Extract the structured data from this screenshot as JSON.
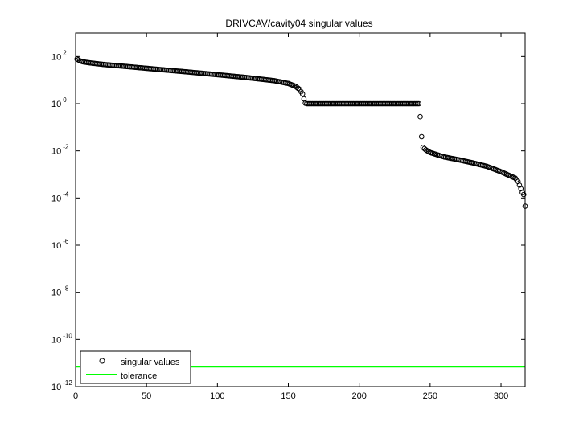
{
  "chart_data": {
    "type": "scatter",
    "title": "DRIVCAV/cavity04 singular values",
    "xlabel": "",
    "ylabel": "",
    "x_scale": "linear",
    "y_scale": "log",
    "xlim": [
      0,
      317
    ],
    "ylim": [
      1e-12,
      1000
    ],
    "x_ticks": [
      0,
      50,
      100,
      150,
      200,
      250,
      300
    ],
    "y_ticks": [
      {
        "exp": -12,
        "base": "10",
        "sup": "-12"
      },
      {
        "exp": -10,
        "base": "10",
        "sup": "-10"
      },
      {
        "exp": -8,
        "base": "10",
        "sup": "-8"
      },
      {
        "exp": -6,
        "base": "10",
        "sup": "-6"
      },
      {
        "exp": -4,
        "base": "10",
        "sup": "-4"
      },
      {
        "exp": -2,
        "base": "10",
        "sup": "-2"
      },
      {
        "exp": 0,
        "base": "10",
        "sup": "0"
      },
      {
        "exp": 2,
        "base": "10",
        "sup": "2"
      }
    ],
    "grid": false,
    "legend": {
      "position": "bottom-left",
      "entries": [
        {
          "label": "singular values",
          "marker": "circle",
          "color": "#000000"
        },
        {
          "label": "tolerance",
          "marker": "line",
          "color": "#00ff00"
        }
      ]
    },
    "series": [
      {
        "name": "singular values",
        "marker": "circle",
        "color": "#000000",
        "n": 317,
        "profile": [
          [
            1,
            78
          ],
          [
            2,
            72
          ],
          [
            3,
            66
          ],
          [
            5,
            60
          ],
          [
            10,
            54
          ],
          [
            20,
            46
          ],
          [
            40,
            36
          ],
          [
            60,
            28
          ],
          [
            80,
            22
          ],
          [
            100,
            17
          ],
          [
            120,
            13
          ],
          [
            140,
            9.5
          ],
          [
            150,
            7.2
          ],
          [
            155,
            5.5
          ],
          [
            158,
            4.0
          ],
          [
            160,
            2.6
          ],
          [
            161,
            1.6
          ],
          [
            162,
            1.05
          ],
          [
            163,
            1.0
          ],
          [
            242,
            1.0
          ],
          [
            243,
            0.28
          ],
          [
            244,
            0.04
          ],
          [
            245,
            0.014
          ],
          [
            247,
            0.011
          ],
          [
            250,
            0.0085
          ],
          [
            260,
            0.0055
          ],
          [
            270,
            0.0042
          ],
          [
            280,
            0.0031
          ],
          [
            290,
            0.0022
          ],
          [
            300,
            0.0013
          ],
          [
            305,
            0.00095
          ],
          [
            310,
            0.0007
          ],
          [
            312,
            0.0005
          ],
          [
            313,
            0.00035
          ],
          [
            314,
            0.00025
          ],
          [
            315,
            0.00017
          ],
          [
            316,
            0.00014
          ],
          [
            317,
            4.5e-05
          ]
        ]
      },
      {
        "name": "tolerance",
        "marker": "line",
        "color": "#00ff00",
        "y": 7e-12
      }
    ]
  }
}
